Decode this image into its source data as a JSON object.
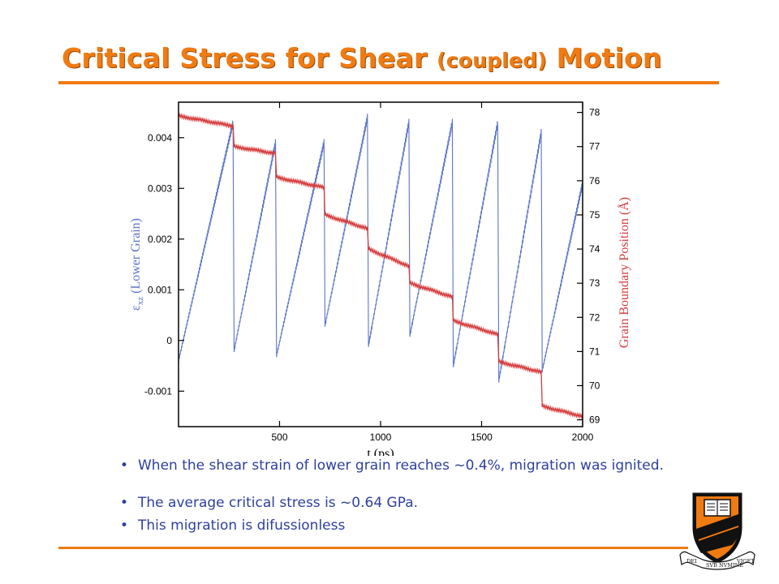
{
  "slide": {
    "title_main": "Critical Stress for Shear ",
    "title_paren": "(coupled)",
    "title_tail": " Motion",
    "bullets": [
      "When the shear strain of lower grain reaches ~0.4%, migration was ignited.",
      "The average critical stress is ~0.64 GPa.",
      "This migration is difussionless"
    ]
  },
  "colors": {
    "accent": "#f07b12",
    "bullet_text": "#2e3f9e",
    "strain_series": "#5a74c8",
    "position_series": "#d63a3a",
    "seal_orange": "#f07b12"
  },
  "chart_data": {
    "type": "line",
    "xlabel": "t (ps)",
    "ylabel_left_symbol": "ε",
    "ylabel_left_sub": "xz",
    "ylabel_left_text": " (Lower Grain)",
    "ylabel_right": "Grain Boundary Position (Å)",
    "xlim": [
      0,
      2000
    ],
    "ylim_left": [
      -0.0017,
      0.0047
    ],
    "ylim_right": [
      68.8,
      78.3
    ],
    "x_ticks": [
      500,
      1000,
      1500,
      2000
    ],
    "x_tick_labels": [
      "500",
      "1000",
      "1500",
      "2000"
    ],
    "y_left_ticks": [
      -0.001,
      0,
      0.001,
      0.002,
      0.003,
      0.004
    ],
    "y_left_tick_labels": [
      "-0.001",
      "0",
      "0.001",
      "0.002",
      "0.003",
      "0.004"
    ],
    "y_right_ticks": [
      69,
      70,
      71,
      72,
      73,
      74,
      75,
      76,
      77,
      78
    ],
    "y_right_tick_labels": [
      "69",
      "70",
      "71",
      "72",
      "73",
      "74",
      "75",
      "76",
      "77",
      "78"
    ],
    "grid": false,
    "series": [
      {
        "axis": "left",
        "x": [
          0,
          270,
          275,
          480,
          485,
          720,
          725,
          935,
          940,
          1140,
          1145,
          1355,
          1360,
          1580,
          1585,
          1795,
          1800,
          2000
        ],
        "y": [
          -0.0004,
          0.0043,
          -0.0002,
          0.0039,
          -0.0003,
          0.0039,
          0.0003,
          0.0044,
          -0.0001,
          0.0043,
          0.0001,
          0.0043,
          -0.0005,
          0.0043,
          -0.0008,
          0.0041,
          -0.0006,
          0.0031
        ]
      },
      {
        "axis": "right",
        "x": [
          0,
          270,
          275,
          480,
          485,
          720,
          725,
          935,
          940,
          1140,
          1145,
          1355,
          1360,
          1580,
          1585,
          1795,
          1800,
          2000
        ],
        "y": [
          77.9,
          77.6,
          77.0,
          76.8,
          76.1,
          75.8,
          75.0,
          74.6,
          74.0,
          73.5,
          73.0,
          72.6,
          71.9,
          71.5,
          70.7,
          70.4,
          69.4,
          69.1
        ]
      }
    ]
  }
}
